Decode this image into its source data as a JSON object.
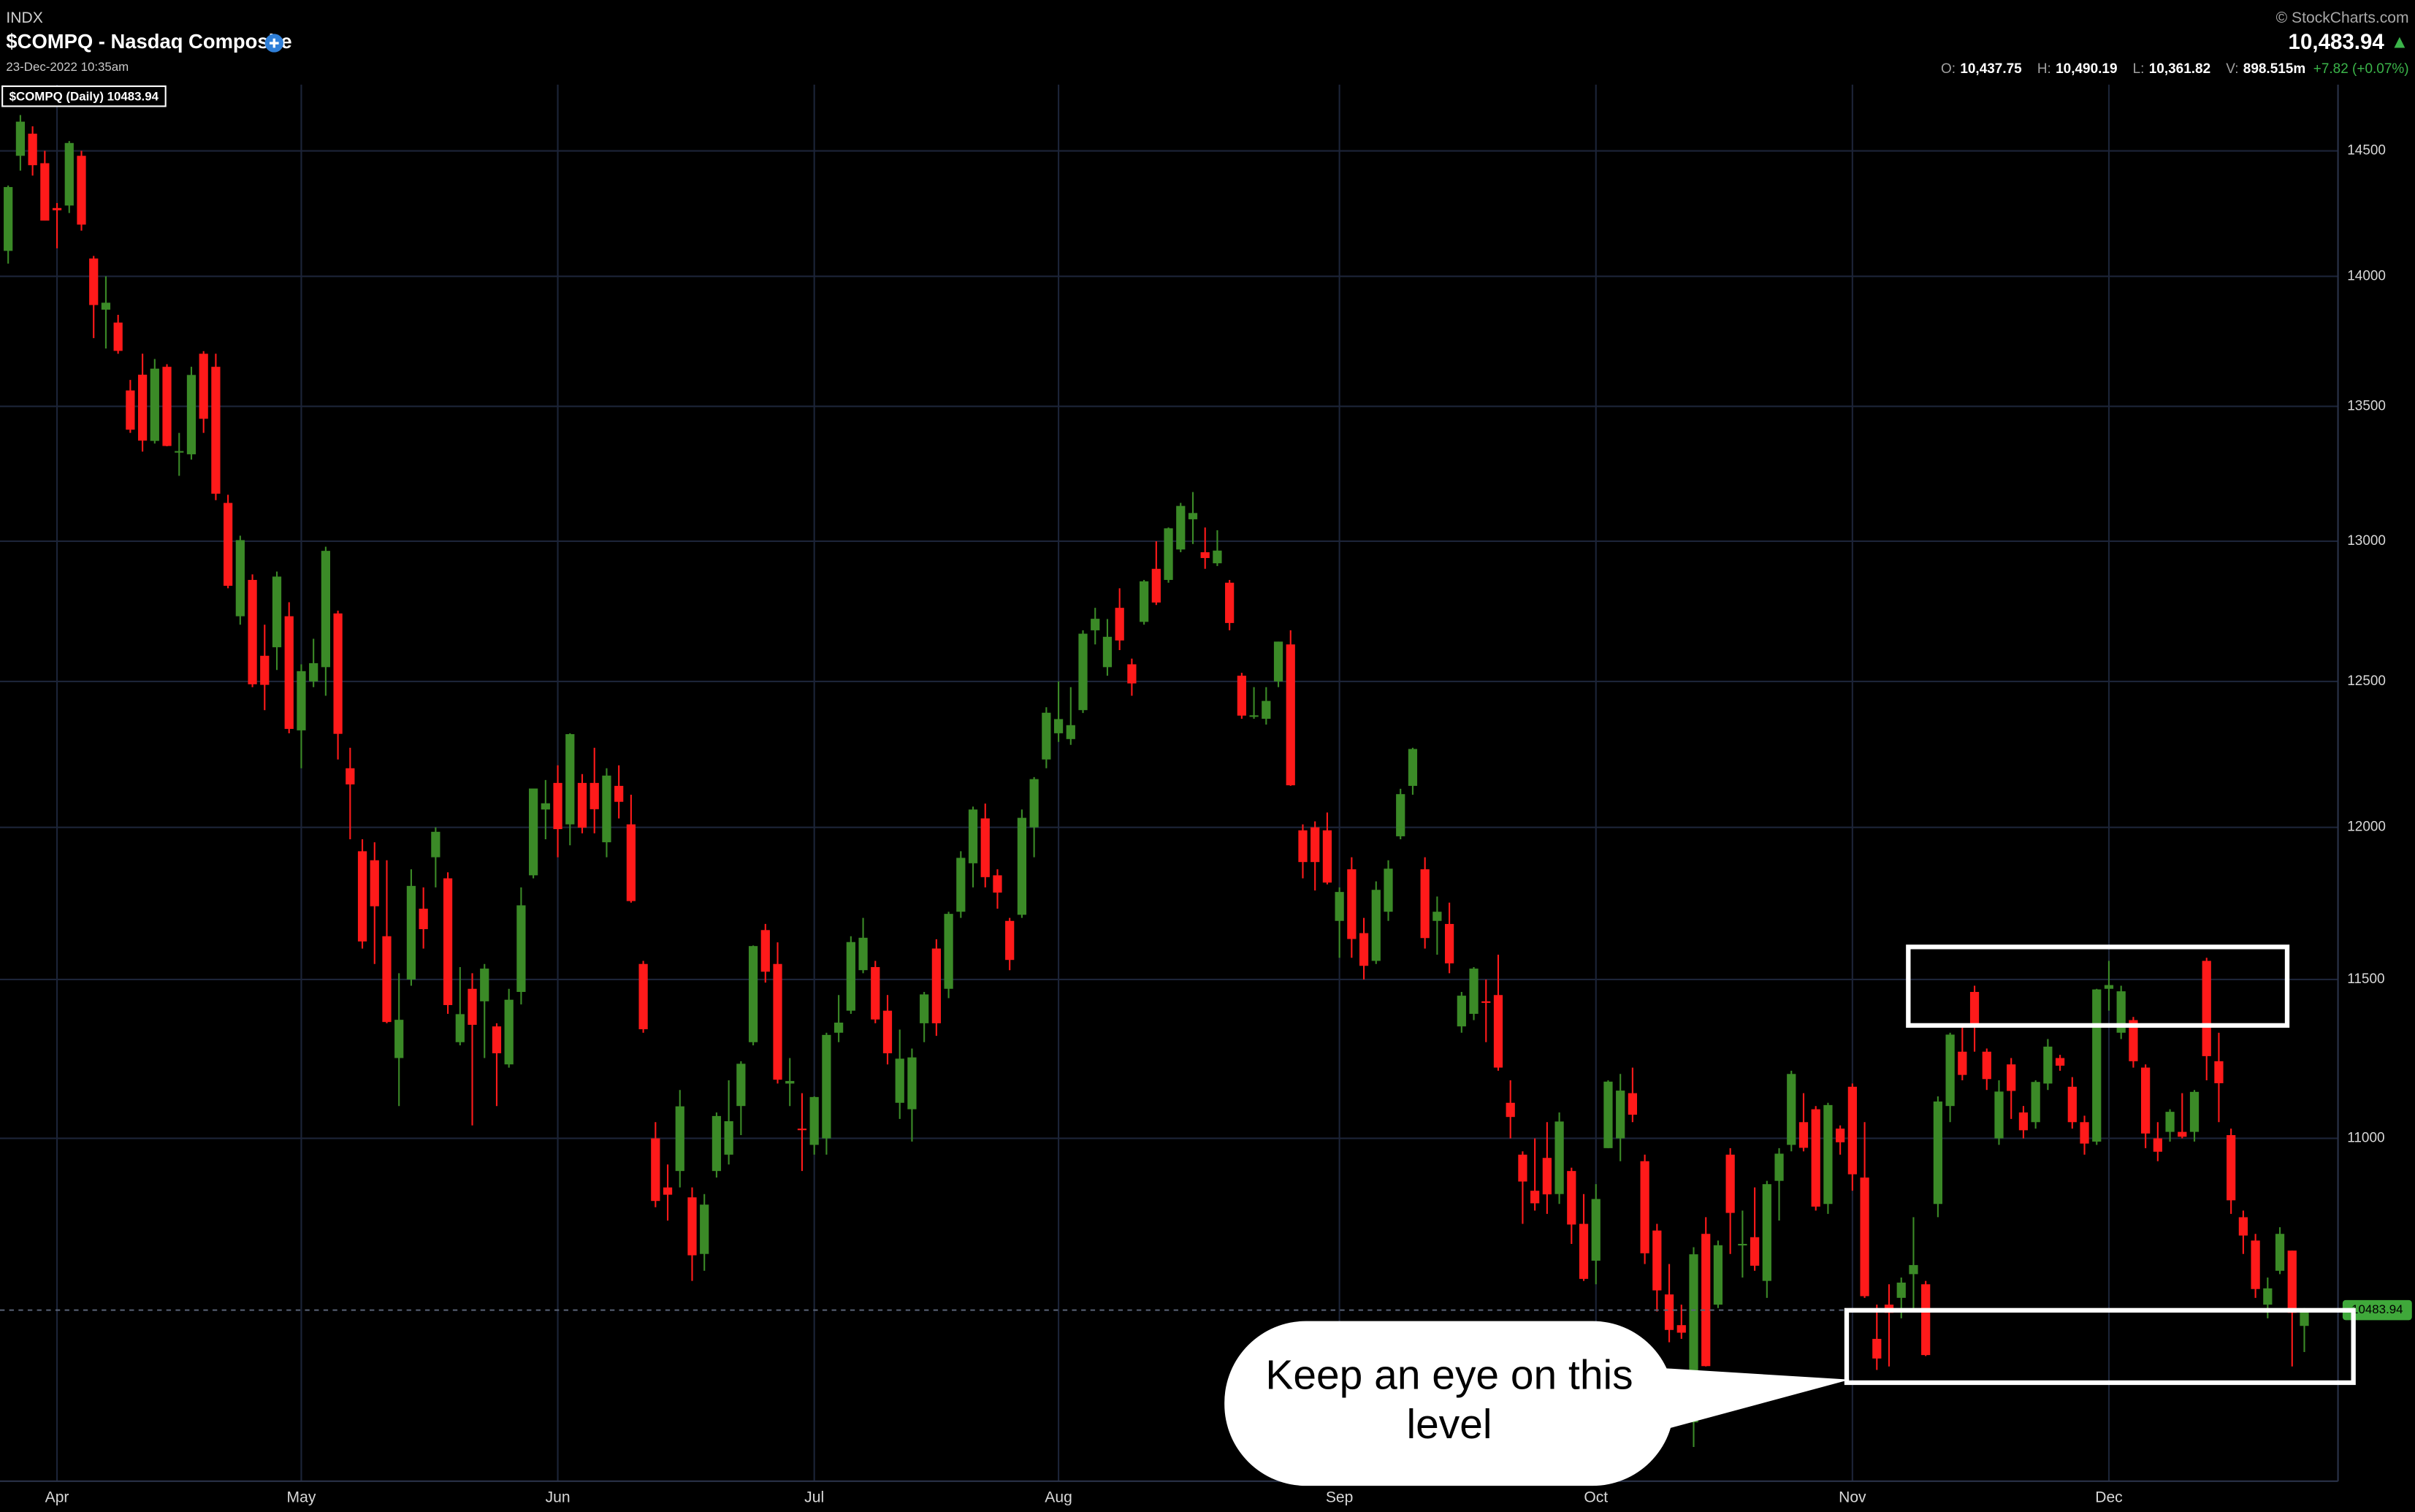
{
  "header": {
    "exchange": "INDX",
    "title": "$COMPQ - Nasdaq Composite",
    "timestamp": "23-Dec-2022 10:35am",
    "copyright": "© StockCharts.com",
    "last": "10,483.94",
    "last_arrow": "▲",
    "quote": [
      {
        "label": "O:",
        "value": "10,437.75"
      },
      {
        "label": "H:",
        "value": "10,490.19"
      },
      {
        "label": "L:",
        "value": "10,361.82"
      },
      {
        "label": "V:",
        "value": "898.515m"
      }
    ],
    "change": "+7.82 (+0.07%)"
  },
  "chart_data": {
    "type": "candlestick",
    "legend_label": "$COMPQ (Daily) 10483.94",
    "annotation": "Keep an eye on this level",
    "up_color": "#3b8a27",
    "down_color": "#ff1a1a",
    "log_scale": true,
    "grid": true,
    "ylim": [
      9994,
      14771
    ],
    "yticks": [
      11000,
      11500,
      12000,
      12500,
      13000,
      13500,
      14000,
      14500
    ],
    "categories": [
      null,
      null,
      null,
      null,
      "Apr",
      null,
      null,
      null,
      null,
      null,
      null,
      null,
      null,
      null,
      null,
      null,
      null,
      null,
      null,
      null,
      null,
      null,
      null,
      null,
      "May",
      null,
      null,
      null,
      null,
      null,
      null,
      null,
      null,
      null,
      null,
      null,
      null,
      null,
      null,
      null,
      null,
      null,
      null,
      null,
      null,
      "Jun",
      null,
      null,
      null,
      null,
      null,
      null,
      null,
      null,
      null,
      null,
      null,
      null,
      null,
      null,
      null,
      null,
      null,
      null,
      null,
      null,
      "Jul",
      null,
      null,
      null,
      null,
      null,
      null,
      null,
      null,
      null,
      null,
      null,
      null,
      null,
      null,
      null,
      null,
      null,
      null,
      null,
      "Aug",
      null,
      null,
      null,
      null,
      null,
      null,
      null,
      null,
      null,
      null,
      null,
      null,
      null,
      null,
      null,
      null,
      null,
      null,
      null,
      null,
      null,
      null,
      "Sep",
      null,
      null,
      null,
      null,
      null,
      null,
      null,
      null,
      null,
      null,
      null,
      null,
      null,
      null,
      null,
      null,
      null,
      null,
      null,
      null,
      "Oct",
      null,
      null,
      null,
      null,
      null,
      null,
      null,
      null,
      null,
      null,
      null,
      null,
      null,
      null,
      null,
      null,
      null,
      null,
      null,
      null,
      "Nov",
      null,
      null,
      null,
      null,
      null,
      null,
      null,
      null,
      null,
      null,
      null,
      null,
      null,
      null,
      null,
      null,
      null,
      null,
      null,
      null,
      "Dec",
      null,
      null,
      null,
      null,
      null,
      null,
      null,
      null,
      null,
      null,
      null,
      null,
      null,
      null,
      null,
      null
    ],
    "ohlc": [
      [
        14100,
        14360,
        14050,
        14354
      ],
      [
        14480,
        14646,
        14420,
        14619
      ],
      [
        14570,
        14600,
        14400,
        14442
      ],
      [
        14450,
        14500,
        14220,
        14220
      ],
      [
        14270,
        14290,
        14110,
        14261
      ],
      [
        14280,
        14540,
        14250,
        14532
      ],
      [
        14480,
        14500,
        14180,
        14204
      ],
      [
        14070,
        14080,
        13760,
        13888
      ],
      [
        13870,
        14000,
        13720,
        13897
      ],
      [
        13820,
        13850,
        13700,
        13711
      ],
      [
        13560,
        13600,
        13400,
        13412
      ],
      [
        13620,
        13700,
        13330,
        13371
      ],
      [
        13370,
        13680,
        13360,
        13643
      ],
      [
        13650,
        13660,
        13350,
        13351
      ],
      [
        13330,
        13400,
        13240,
        13332
      ],
      [
        13320,
        13650,
        13300,
        13619
      ],
      [
        13700,
        13710,
        13400,
        13453
      ],
      [
        13650,
        13700,
        13150,
        13174
      ],
      [
        13140,
        13170,
        12830,
        12839
      ],
      [
        12730,
        13020,
        12700,
        13004
      ],
      [
        12860,
        12880,
        12480,
        12490
      ],
      [
        12590,
        12700,
        12400,
        12488
      ],
      [
        12620,
        12890,
        12540,
        12872
      ],
      [
        12730,
        12780,
        12320,
        12335
      ],
      [
        12330,
        12560,
        12200,
        12536
      ],
      [
        12500,
        12650,
        12480,
        12564
      ],
      [
        12550,
        12980,
        12450,
        12965
      ],
      [
        12740,
        12750,
        12230,
        12318
      ],
      [
        12200,
        12270,
        11960,
        12145
      ],
      [
        11920,
        11960,
        11600,
        11623
      ],
      [
        11890,
        11950,
        11550,
        11738
      ],
      [
        11640,
        11890,
        11360,
        11364
      ],
      [
        11250,
        11520,
        11100,
        11371
      ],
      [
        11500,
        11860,
        11480,
        11805
      ],
      [
        11730,
        11800,
        11600,
        11663
      ],
      [
        11900,
        12000,
        11800,
        11985
      ],
      [
        11830,
        11850,
        11390,
        11418
      ],
      [
        11300,
        11540,
        11290,
        11389
      ],
      [
        11470,
        11520,
        11040,
        11355
      ],
      [
        11430,
        11550,
        11250,
        11535
      ],
      [
        11350,
        11360,
        11100,
        11265
      ],
      [
        11230,
        11470,
        11220,
        11435
      ],
      [
        11460,
        11800,
        11420,
        11741
      ],
      [
        11840,
        12130,
        11830,
        12131
      ],
      [
        12060,
        12160,
        11960,
        12081
      ],
      [
        12150,
        12210,
        11900,
        11994
      ],
      [
        12010,
        12320,
        11940,
        12317
      ],
      [
        12150,
        12180,
        11980,
        11999
      ],
      [
        12150,
        12270,
        11980,
        12061
      ],
      [
        11950,
        12200,
        11900,
        12175
      ],
      [
        12140,
        12210,
        12030,
        12086
      ],
      [
        12010,
        12110,
        11750,
        11755
      ],
      [
        11550,
        11560,
        11330,
        11341
      ],
      [
        11000,
        11050,
        10790,
        10809
      ],
      [
        10850,
        10920,
        10750,
        10828
      ],
      [
        10900,
        11150,
        10850,
        11099
      ],
      [
        10820,
        10850,
        10570,
        10646
      ],
      [
        10650,
        10830,
        10600,
        10798
      ],
      [
        10900,
        11080,
        10880,
        11069
      ],
      [
        10950,
        11180,
        10920,
        11053
      ],
      [
        11100,
        11240,
        11010,
        11232
      ],
      [
        11300,
        11610,
        11290,
        11608
      ],
      [
        11660,
        11680,
        11490,
        11525
      ],
      [
        11550,
        11620,
        11170,
        11182
      ],
      [
        11170,
        11250,
        11100,
        11178
      ],
      [
        11030,
        11140,
        10900,
        11029
      ],
      [
        10980,
        11130,
        10950,
        11128
      ],
      [
        11000,
        11330,
        10950,
        11323
      ],
      [
        11330,
        11450,
        11300,
        11362
      ],
      [
        11400,
        11640,
        11390,
        11621
      ],
      [
        11530,
        11700,
        11520,
        11635
      ],
      [
        11540,
        11560,
        11360,
        11372
      ],
      [
        11400,
        11450,
        11230,
        11265
      ],
      [
        11110,
        11340,
        11060,
        11248
      ],
      [
        11090,
        11280,
        10990,
        11252
      ],
      [
        11360,
        11460,
        11300,
        11452
      ],
      [
        11600,
        11630,
        11320,
        11360
      ],
      [
        11470,
        11720,
        11440,
        11713
      ],
      [
        11720,
        11920,
        11700,
        11898
      ],
      [
        11880,
        12070,
        11800,
        12060
      ],
      [
        12030,
        12080,
        11800,
        11834
      ],
      [
        11840,
        11860,
        11730,
        11783
      ],
      [
        11690,
        11700,
        11530,
        11563
      ],
      [
        11710,
        12060,
        11700,
        12032
      ],
      [
        12000,
        12170,
        11900,
        12163
      ],
      [
        12230,
        12410,
        12200,
        12391
      ],
      [
        12320,
        12500,
        12290,
        12369
      ],
      [
        12300,
        12480,
        12280,
        12348
      ],
      [
        12400,
        12680,
        12390,
        12668
      ],
      [
        12680,
        12760,
        12630,
        12721
      ],
      [
        12550,
        12720,
        12520,
        12657
      ],
      [
        12760,
        12830,
        12610,
        12644
      ],
      [
        12560,
        12580,
        12450,
        12493
      ],
      [
        12710,
        12860,
        12700,
        12855
      ],
      [
        12900,
        13000,
        12770,
        12779
      ],
      [
        12860,
        13050,
        12850,
        13047
      ],
      [
        12970,
        13140,
        12960,
        13129
      ],
      [
        13080,
        13180,
        12990,
        13103
      ],
      [
        12960,
        13050,
        12900,
        12939
      ],
      [
        12920,
        13040,
        12910,
        12966
      ],
      [
        12850,
        12860,
        12680,
        12706
      ],
      [
        12520,
        12530,
        12370,
        12381
      ],
      [
        12380,
        12480,
        12370,
        12382
      ],
      [
        12370,
        12480,
        12350,
        12432
      ],
      [
        12500,
        12640,
        12480,
        12640
      ],
      [
        12630,
        12680,
        12140,
        12142
      ],
      [
        11990,
        12010,
        11830,
        11884
      ],
      [
        12000,
        12020,
        11790,
        11884
      ],
      [
        11990,
        12050,
        11810,
        11816
      ],
      [
        11690,
        11800,
        11570,
        11785
      ],
      [
        11860,
        11900,
        11570,
        11631
      ],
      [
        11650,
        11700,
        11500,
        11544
      ],
      [
        11560,
        11820,
        11550,
        11792
      ],
      [
        11720,
        11890,
        11690,
        11862
      ],
      [
        11970,
        12130,
        11960,
        12112
      ],
      [
        12140,
        12270,
        12110,
        12266
      ],
      [
        11860,
        11900,
        11600,
        11634
      ],
      [
        11690,
        11770,
        11580,
        11720
      ],
      [
        11680,
        11750,
        11520,
        11552
      ],
      [
        11350,
        11460,
        11330,
        11448
      ],
      [
        11390,
        11540,
        11370,
        11535
      ],
      [
        11430,
        11500,
        11300,
        11425
      ],
      [
        11450,
        11580,
        11210,
        11220
      ],
      [
        11110,
        11180,
        11000,
        11066
      ],
      [
        10950,
        10960,
        10740,
        10868
      ],
      [
        10840,
        11000,
        10780,
        10802
      ],
      [
        10940,
        11050,
        10770,
        10829
      ],
      [
        10830,
        11080,
        10800,
        11052
      ],
      [
        10900,
        10910,
        10680,
        10738
      ],
      [
        10740,
        10830,
        10570,
        10576
      ],
      [
        10630,
        10860,
        10560,
        10815
      ],
      [
        10970,
        11180,
        10970,
        11176
      ],
      [
        11000,
        11200,
        10930,
        11148
      ],
      [
        11140,
        11220,
        11050,
        11073
      ],
      [
        10930,
        10950,
        10620,
        10652
      ],
      [
        10720,
        10740,
        10480,
        10542
      ],
      [
        10530,
        10620,
        10390,
        10426
      ],
      [
        10440,
        10500,
        10400,
        10418
      ],
      [
        10160,
        10670,
        10090,
        10649
      ],
      [
        10710,
        10760,
        10320,
        10321
      ],
      [
        10500,
        10690,
        10490,
        10676
      ],
      [
        10950,
        10970,
        10650,
        10773
      ],
      [
        10680,
        10780,
        10580,
        10680
      ],
      [
        10700,
        10850,
        10600,
        10615
      ],
      [
        10570,
        10870,
        10520,
        10860
      ],
      [
        10870,
        10970,
        10750,
        10953
      ],
      [
        10980,
        11210,
        10960,
        11200
      ],
      [
        11050,
        11140,
        10960,
        10971
      ],
      [
        11090,
        11100,
        10780,
        10792
      ],
      [
        10800,
        11110,
        10770,
        11103
      ],
      [
        11030,
        11040,
        10950,
        10988
      ],
      [
        11160,
        11170,
        10840,
        10890
      ],
      [
        10880,
        11050,
        10520,
        10525
      ],
      [
        10400,
        10500,
        10310,
        10343
      ],
      [
        10500,
        10560,
        10320,
        10476
      ],
      [
        10520,
        10580,
        10460,
        10565
      ],
      [
        10590,
        10760,
        10480,
        10617
      ],
      [
        10560,
        10570,
        10350,
        10353
      ],
      [
        10800,
        11130,
        10760,
        11114
      ],
      [
        11100,
        11330,
        11050,
        11324
      ],
      [
        11270,
        11350,
        11180,
        11197
      ],
      [
        11460,
        11480,
        11270,
        11359
      ],
      [
        11270,
        11280,
        11150,
        11184
      ],
      [
        11000,
        11180,
        10980,
        11145
      ],
      [
        11230,
        11250,
        11060,
        11147
      ],
      [
        11080,
        11100,
        11000,
        11025
      ],
      [
        11050,
        11180,
        11030,
        11175
      ],
      [
        11170,
        11310,
        11150,
        11286
      ],
      [
        11250,
        11260,
        11210,
        11226
      ],
      [
        11160,
        11190,
        11030,
        11050
      ],
      [
        11050,
        11070,
        10950,
        10984
      ],
      [
        10990,
        11470,
        10980,
        11468
      ],
      [
        11470,
        11560,
        11400,
        11482
      ],
      [
        11330,
        11480,
        11310,
        11462
      ],
      [
        11370,
        11380,
        11220,
        11240
      ],
      [
        11220,
        11230,
        10970,
        11015
      ],
      [
        11000,
        11050,
        10930,
        10959
      ],
      [
        11020,
        11090,
        10990,
        11082
      ],
      [
        11020,
        11140,
        11000,
        11005
      ],
      [
        11020,
        11150,
        10990,
        11144
      ],
      [
        11560,
        11570,
        11180,
        11256
      ],
      [
        11240,
        11330,
        11050,
        11171
      ],
      [
        11010,
        11030,
        10770,
        10811
      ],
      [
        10760,
        10780,
        10650,
        10705
      ],
      [
        10690,
        10710,
        10520,
        10546
      ],
      [
        10500,
        10580,
        10460,
        10548
      ],
      [
        10600,
        10730,
        10590,
        10710
      ],
      [
        10660,
        10660,
        10320,
        10476
      ],
      [
        10437.75,
        10490.19,
        10361.82,
        10483.94
      ]
    ]
  }
}
